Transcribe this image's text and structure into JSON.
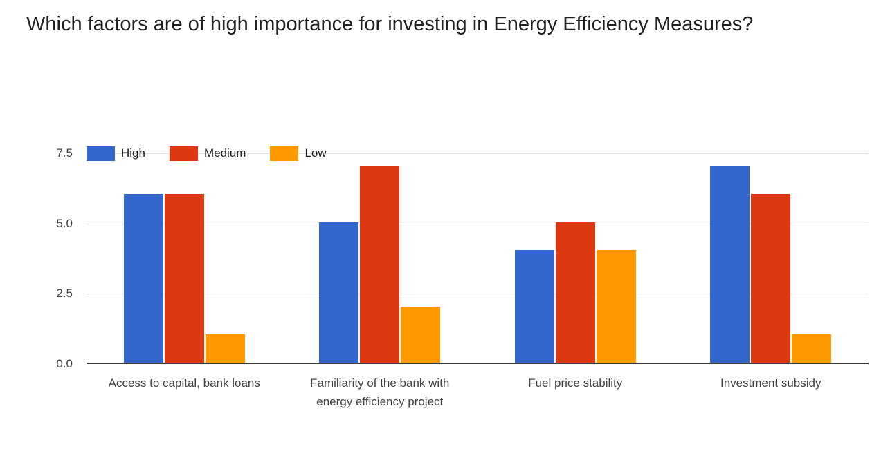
{
  "page": {
    "background": "#ffffff",
    "text_color": "#212121",
    "axis_text_color": "#424242",
    "gridline_color": "#e0e0e0",
    "baseline_color": "#3b3b3b"
  },
  "chart_data": {
    "type": "bar",
    "title": "Which factors are of high importance for investing in Energy Efficiency Measures?",
    "categories": [
      "Access to capital, bank loans",
      "Familiarity of the bank with energy efficiency project",
      "Fuel price stability",
      "Investment subsidy"
    ],
    "series": [
      {
        "name": "High",
        "color": "#3366CC",
        "values": [
          6,
          5,
          4,
          7
        ]
      },
      {
        "name": "Medium",
        "color": "#DC3912",
        "values": [
          6,
          7,
          5,
          6
        ]
      },
      {
        "name": "Low",
        "color": "#FF9900",
        "values": [
          1,
          2,
          4,
          1
        ]
      }
    ],
    "ylim": [
      0,
      7.5
    ],
    "yticks": [
      0,
      2.5,
      5,
      7.5
    ],
    "ytick_labels": [
      "0.0",
      "2.5",
      "5.0",
      "7.5"
    ],
    "grid": true,
    "legend_position": "top-left"
  }
}
